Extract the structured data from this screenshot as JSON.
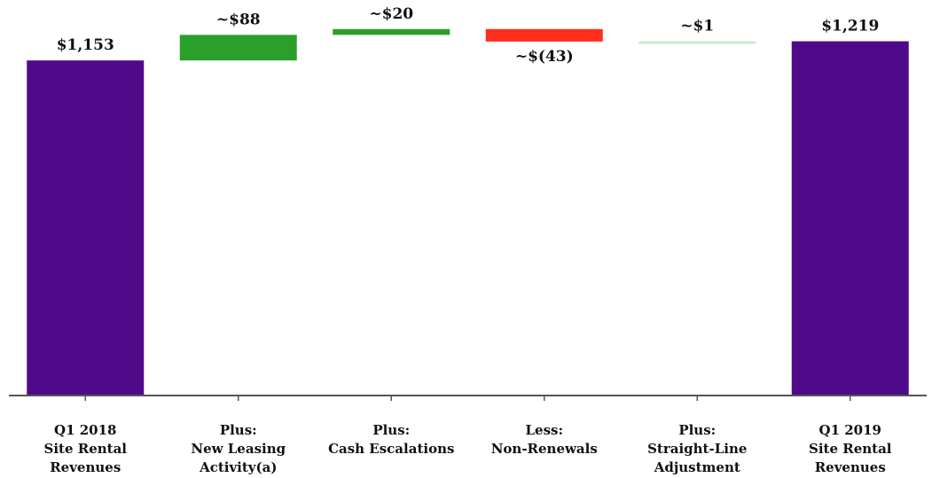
{
  "chart_data": {
    "type": "bar",
    "subtype": "waterfall",
    "title": "",
    "xlabel": "",
    "ylabel": "",
    "categories": [
      [
        "Q1 2018",
        "Site Rental",
        "Revenues"
      ],
      [
        "Plus:",
        "New Leasing",
        "Activity(a)"
      ],
      [
        "Plus:",
        "Cash Escalations"
      ],
      [
        "Less:",
        "Non-Renewals"
      ],
      [
        "Plus:",
        "Straight-Line",
        "Adjustment"
      ],
      [
        "Q1 2019",
        "Site Rental",
        "Revenues"
      ]
    ],
    "steps": [
      {
        "kind": "total",
        "value": 1153,
        "label": "$1,153",
        "color": "#4f0a8a"
      },
      {
        "kind": "delta",
        "value": 88,
        "label": "~$88",
        "color": "#2aa02a"
      },
      {
        "kind": "delta",
        "value": 20,
        "label": "~$20",
        "color": "#2aa02a"
      },
      {
        "kind": "delta",
        "value": -43,
        "label": "~$(43)",
        "color": "#ff2e1f"
      },
      {
        "kind": "delta",
        "value": 1,
        "label": "~$1",
        "color": "#c9ecd2"
      },
      {
        "kind": "total",
        "value": 1219,
        "label": "$1,219",
        "color": "#4f0a8a"
      }
    ],
    "ylim": [
      0,
      1300
    ],
    "grid": false,
    "legend": "none"
  }
}
